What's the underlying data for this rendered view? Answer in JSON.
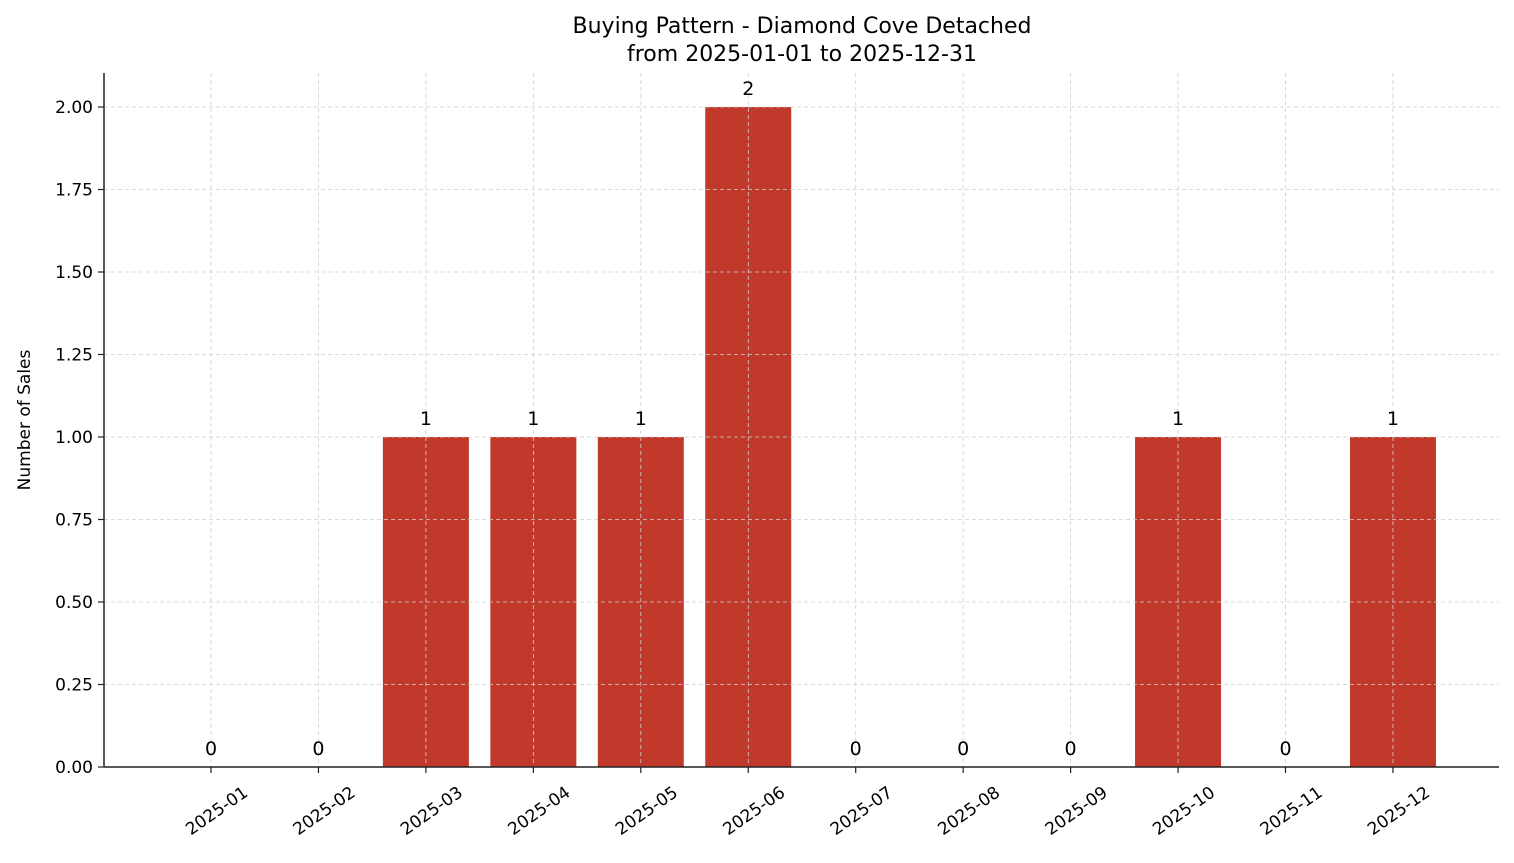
{
  "chart_data": {
    "type": "bar",
    "title": "Buying Pattern - Diamond Cove Detached",
    "subtitle": "from 2025-01-01 to 2025-12-31",
    "xlabel": "",
    "ylabel": "Number of Sales",
    "categories": [
      "2025-01",
      "2025-02",
      "2025-03",
      "2025-04",
      "2025-05",
      "2025-06",
      "2025-07",
      "2025-08",
      "2025-09",
      "2025-10",
      "2025-11",
      "2025-12"
    ],
    "values": [
      0,
      0,
      1,
      1,
      1,
      2,
      0,
      0,
      0,
      1,
      0,
      1
    ],
    "data_labels": [
      "0",
      "0",
      "1",
      "1",
      "1",
      "2",
      "0",
      "0",
      "0",
      "1",
      "0",
      "1"
    ],
    "ylim": [
      0,
      2.1
    ],
    "yticks": [
      0.0,
      0.25,
      0.5,
      0.75,
      1.0,
      1.25,
      1.5,
      1.75,
      2.0
    ],
    "ytick_labels": [
      "0.00",
      "0.25",
      "0.50",
      "0.75",
      "1.00",
      "1.25",
      "1.50",
      "1.75",
      "2.00"
    ],
    "grid": true,
    "grid_style": "dashed",
    "legend": null,
    "bar_color": "#c0392b",
    "xtick_rotation": 35
  }
}
